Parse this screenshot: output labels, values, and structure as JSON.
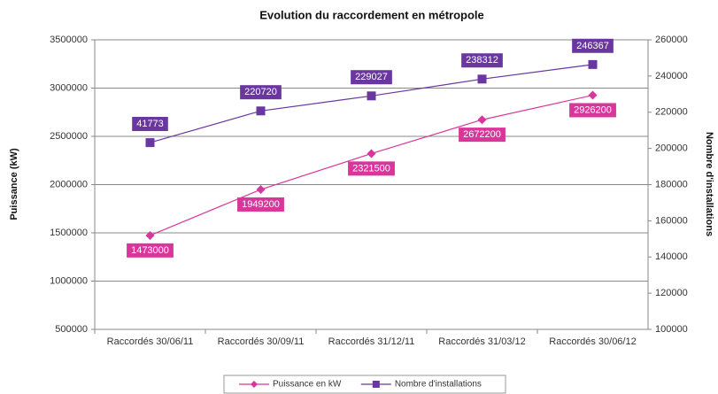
{
  "chart_data": {
    "type": "line",
    "title": "Evolution du raccordement en métropole",
    "y_label": "Puissance (kW)",
    "y2_label": "Nombre d'installations",
    "categories": [
      "Raccordés 30/06/11",
      "Raccordés 30/09/11",
      "Raccordés 31/12/11",
      "Raccordés 31/03/12",
      "Raccordés 30/06/12"
    ],
    "series": [
      {
        "name": "Puissance en kW",
        "color": "#d9359b",
        "values": [
          1473000,
          1949200,
          2321500,
          2672200,
          2926200
        ]
      },
      {
        "name": "Nombre d'installations",
        "color": "#6a36a0",
        "axis": "y2",
        "values": [
          203200,
          220720,
          229027,
          238312,
          246367
        ]
      }
    ],
    "annotation": "41773",
    "ylim": [
      500000,
      3500000
    ],
    "yticks": [
      500000,
      1000000,
      1500000,
      2000000,
      2500000,
      3000000,
      3500000
    ],
    "y2lim": [
      100000,
      260000
    ],
    "y2ticks": [
      100000,
      120000,
      140000,
      160000,
      180000,
      200000,
      220000,
      240000,
      260000
    ],
    "grid": true,
    "legend": "bottom"
  }
}
